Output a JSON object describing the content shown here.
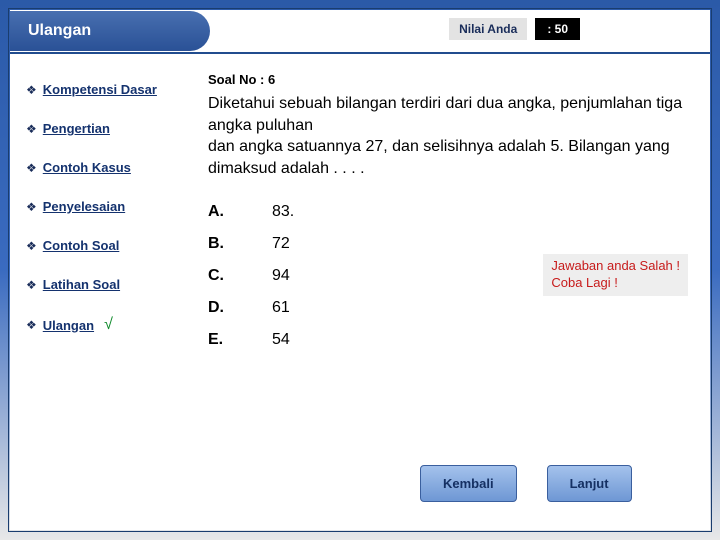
{
  "header": {
    "title": "Ulangan",
    "score_label": "Nilai Anda",
    "score_value": ": 50"
  },
  "sidebar": {
    "items": [
      {
        "label": "Kompetensi Dasar",
        "checked": false
      },
      {
        "label": "Pengertian",
        "checked": false
      },
      {
        "label": "Contoh Kasus",
        "checked": false
      },
      {
        "label": "Penyelesaian",
        "checked": false
      },
      {
        "label": "Contoh Soal",
        "checked": false
      },
      {
        "label": "Latihan Soal",
        "checked": false
      },
      {
        "label": "Ulangan",
        "checked": true
      }
    ]
  },
  "question": {
    "number_label": "Soal No : 6",
    "text": "Diketahui sebuah bilangan terdiri dari dua angka, penjumlahan tiga angka puluhan\ndan angka satuannya 27, dan selisihnya adalah 5. Bilangan yang dimaksud adalah . . . .",
    "options": [
      {
        "letter": "A.",
        "value": "83."
      },
      {
        "letter": "B.",
        "value": "72"
      },
      {
        "letter": "C.",
        "value": "94"
      },
      {
        "letter": "D.",
        "value": "61"
      },
      {
        "letter": "E.",
        "value": "54"
      }
    ]
  },
  "feedback": {
    "line1": "Jawaban anda Salah !",
    "line2": "Coba Lagi !"
  },
  "buttons": {
    "back": "Kembali",
    "next": "Lanjut"
  },
  "colors": {
    "primary": "#2a5196",
    "accent": "#14326e",
    "error": "#c71b1b"
  }
}
